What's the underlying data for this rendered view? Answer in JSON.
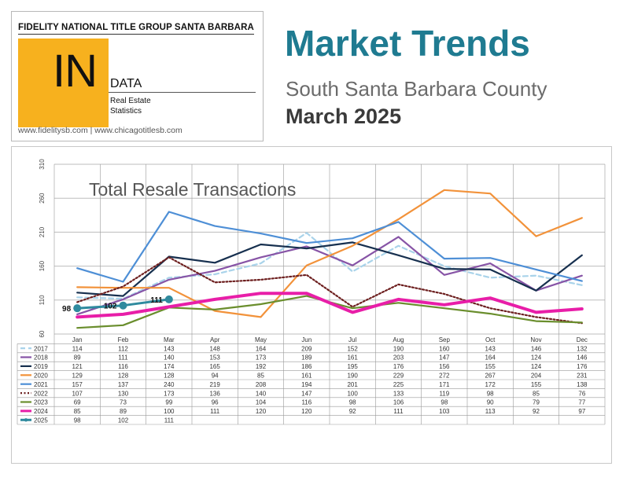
{
  "header": {
    "company": "FIDELITY NATIONAL TITLE GROUP SANTA BARBARA",
    "logo_in": "IN",
    "logo_data": "DATA",
    "logo_sub_1": "Real Estate",
    "logo_sub_2": "Statistics",
    "urls": "www.fidelitysb.com | www.chicagotitlesb.com",
    "title": "Market Trends",
    "subtitle": "South Santa Barbara County",
    "date": "March 2025",
    "logo_color": "#f7b11e",
    "title_color": "#1f7b91"
  },
  "chart_data": {
    "type": "line",
    "title": "Total Resale Transactions",
    "xlabel": "",
    "ylabel": "",
    "ylim": [
      60,
      310
    ],
    "yticks": [
      60,
      110,
      160,
      210,
      260,
      310
    ],
    "grid": true,
    "categories": [
      "Jan",
      "Feb",
      "Mar",
      "Apr",
      "May",
      "Jun",
      "Jul",
      "Aug",
      "Sep",
      "Oct",
      "Nov",
      "Dec"
    ],
    "series": [
      {
        "name": "2017",
        "color": "#a9d3ea",
        "style": "dashed",
        "values": [
          114,
          112,
          143,
          148,
          164,
          209,
          152,
          190,
          160,
          143,
          146,
          132
        ]
      },
      {
        "name": "2018",
        "color": "#8754a6",
        "style": "solid",
        "values": [
          89,
          111,
          140,
          153,
          173,
          189,
          161,
          203,
          147,
          164,
          124,
          146
        ]
      },
      {
        "name": "2019",
        "color": "#17304f",
        "style": "solid",
        "values": [
          121,
          116,
          174,
          165,
          192,
          186,
          195,
          176,
          156,
          155,
          124,
          176
        ]
      },
      {
        "name": "2020",
        "color": "#f2923a",
        "style": "solid",
        "values": [
          129,
          128,
          128,
          94,
          85,
          161,
          190,
          229,
          272,
          267,
          204,
          231
        ]
      },
      {
        "name": "2021",
        "color": "#4e8fd6",
        "style": "solid",
        "values": [
          157,
          137,
          240,
          219,
          208,
          194,
          201,
          225,
          171,
          172,
          155,
          138
        ]
      },
      {
        "name": "2022",
        "color": "#6d1f1f",
        "style": "dotted",
        "values": [
          107,
          130,
          173,
          136,
          140,
          147,
          100,
          133,
          119,
          98,
          85,
          76
        ]
      },
      {
        "name": "2023",
        "color": "#6a8e2d",
        "style": "solid",
        "values": [
          69,
          73,
          99,
          96,
          104,
          116,
          98,
          106,
          98,
          90,
          79,
          77
        ]
      },
      {
        "name": "2024",
        "color": "#e81ea8",
        "style": "thick",
        "values": [
          85,
          89,
          100,
          111,
          120,
          120,
          92,
          111,
          103,
          113,
          92,
          97
        ]
      },
      {
        "name": "2025",
        "color": "#2f8a9e",
        "style": "markers",
        "values": [
          98,
          102,
          111,
          null,
          null,
          null,
          null,
          null,
          null,
          null,
          null,
          null
        ]
      }
    ],
    "labels_2025": [
      "98",
      "102",
      "111"
    ]
  }
}
